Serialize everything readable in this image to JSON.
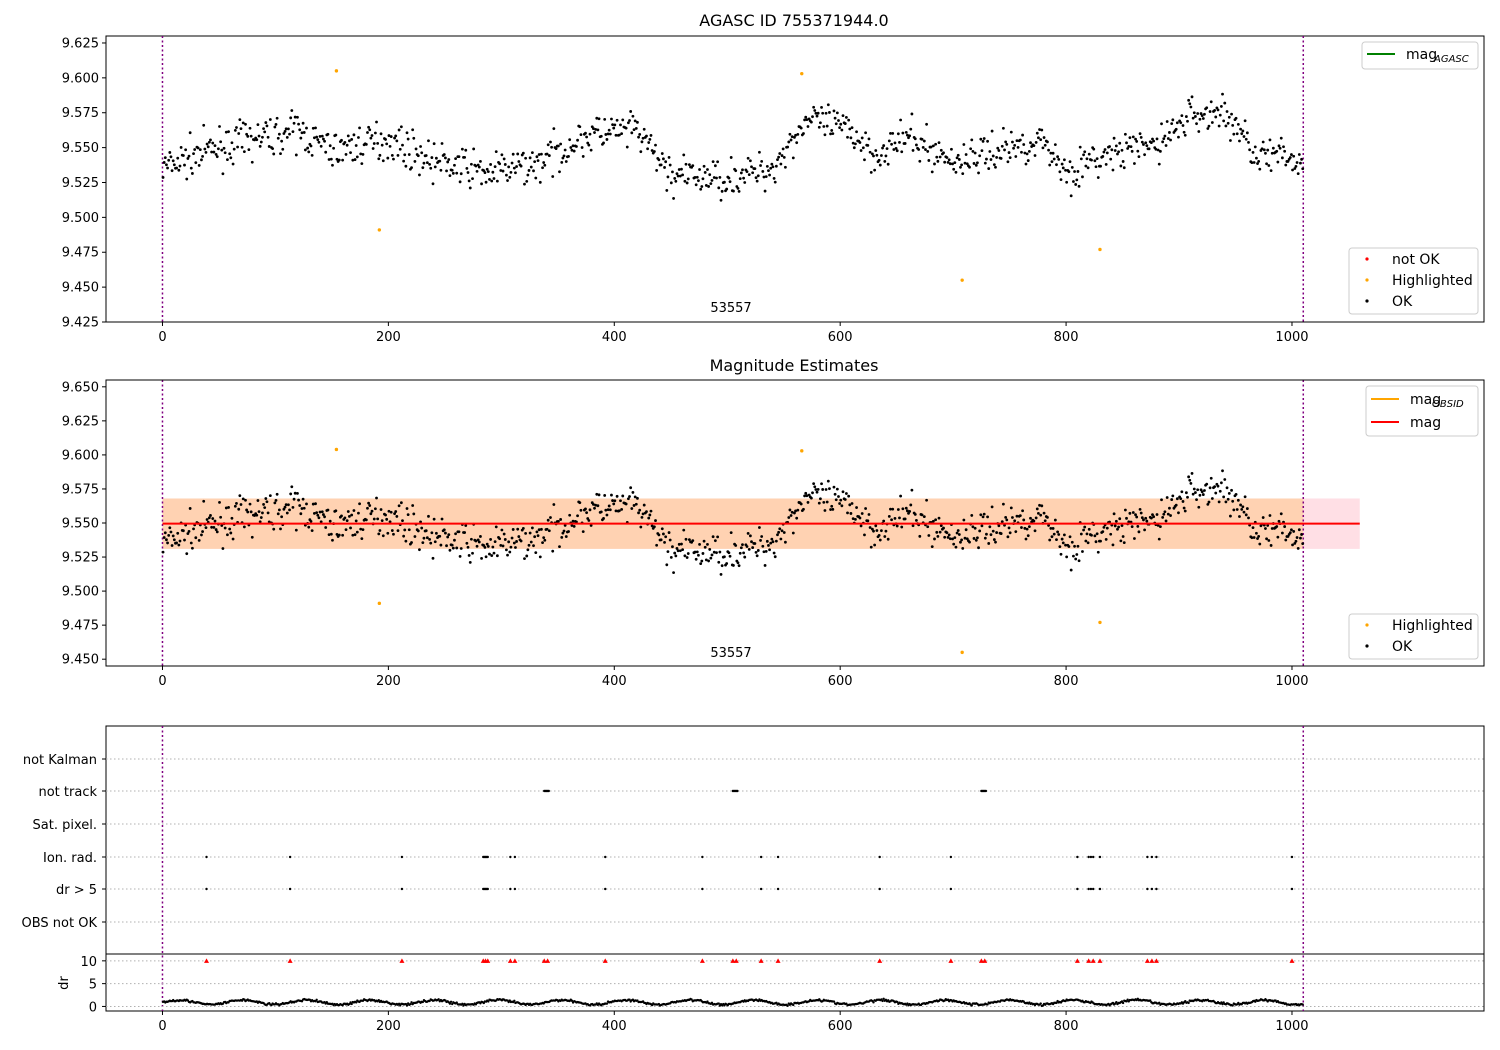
{
  "chart_data": [
    {
      "type": "scatter",
      "title": "AGASC ID 755371944.0",
      "annotation": "53557",
      "xlim": [
        -50,
        1170
      ],
      "ylim": [
        9.425,
        9.63
      ],
      "xticks": [
        0,
        200,
        400,
        600,
        800,
        1000
      ],
      "yticks": [
        9.425,
        9.45,
        9.475,
        9.5,
        9.525,
        9.55,
        9.575,
        9.6,
        9.625
      ],
      "vlines": [
        0,
        1010
      ],
      "grid": false,
      "legend_line": {
        "label": "mag",
        "sub": "AGASC",
        "color": "#008000",
        "position": "top-right"
      },
      "legend_points": {
        "position": "lower-right",
        "items": [
          {
            "label": "not OK",
            "color": "#ff0000"
          },
          {
            "label": "Highlighted",
            "color": "#ffa500"
          },
          {
            "label": "OK",
            "color": "#000000"
          }
        ]
      },
      "highlighted_points": [
        [
          154,
          9.605
        ],
        [
          192,
          9.491
        ],
        [
          566,
          9.603
        ],
        [
          708,
          9.455
        ],
        [
          830,
          9.477
        ]
      ]
    },
    {
      "type": "scatter",
      "title": "Magnitude Estimates",
      "annotation": "53557",
      "xlim": [
        -50,
        1170
      ],
      "ylim": [
        9.445,
        9.655
      ],
      "xticks": [
        0,
        200,
        400,
        600,
        800,
        1000
      ],
      "yticks": [
        9.45,
        9.475,
        9.5,
        9.525,
        9.55,
        9.575,
        9.6,
        9.625,
        9.65
      ],
      "vlines": [
        0,
        1010
      ],
      "grid": false,
      "mag_line": {
        "value": 9.5495,
        "x_range": [
          0,
          1060
        ],
        "color": "#ff0000"
      },
      "band_pink": {
        "range": [
          9.531,
          9.568
        ],
        "x_range": [
          0,
          1060
        ],
        "color": "#ffc0cb"
      },
      "band_orange": {
        "range": [
          9.531,
          9.568
        ],
        "x_range": [
          0,
          1010
        ],
        "color": "#ffa500"
      },
      "legend_lines": {
        "position": "top-right",
        "items": [
          {
            "label": "mag",
            "sub": "OBSID",
            "color": "#ffa500"
          },
          {
            "label": "mag",
            "sub": "",
            "color": "#ff0000"
          }
        ]
      },
      "legend_points": {
        "position": "lower-right",
        "items": [
          {
            "label": "Highlighted",
            "color": "#ffa500"
          },
          {
            "label": "OK",
            "color": "#000000"
          }
        ]
      },
      "highlighted_points": [
        [
          154,
          9.604
        ],
        [
          192,
          9.491
        ],
        [
          566,
          9.603
        ],
        [
          708,
          9.455
        ],
        [
          830,
          9.477
        ]
      ]
    },
    {
      "type": "scatter",
      "xlim": [
        -50,
        1170
      ],
      "xticks": [
        0,
        200,
        400,
        600,
        800,
        1000
      ],
      "vlines": [
        0,
        1010
      ],
      "flag_categories": [
        "not Kalman",
        "not track",
        "Sat. pixel.",
        "Ion. rad.",
        "dr > 5",
        "OBS not OK"
      ],
      "flag_points": {
        "not Kalman": [],
        "not track": [
          338,
          339,
          340,
          341,
          342,
          505,
          506,
          507,
          508,
          509,
          725,
          726,
          727,
          728,
          729
        ],
        "Sat. pixel.": [],
        "Ion. rad.": [
          39,
          113,
          212,
          284,
          285,
          286,
          287,
          288,
          308,
          312,
          392,
          478,
          530,
          545,
          635,
          698,
          810,
          820,
          822,
          824,
          830,
          872,
          876,
          880,
          1000
        ],
        "dr > 5": [
          39,
          113,
          212,
          284,
          285,
          286,
          287,
          288,
          308,
          312,
          392,
          478,
          530,
          545,
          635,
          698,
          810,
          820,
          822,
          824,
          830,
          872,
          876,
          880,
          1000
        ],
        "OBS not OK": []
      },
      "dr_ylabel": "dr",
      "dr_yticks": [
        0,
        5,
        10
      ],
      "dr_ylim": [
        -1,
        11.5
      ],
      "dr_red_x": [
        39,
        113,
        212,
        284,
        286,
        288,
        308,
        312,
        338,
        341,
        392,
        478,
        505,
        508,
        530,
        545,
        635,
        698,
        725,
        728,
        810,
        820,
        824,
        830,
        872,
        876,
        880,
        1000
      ],
      "dr_red_value": 10
    }
  ]
}
